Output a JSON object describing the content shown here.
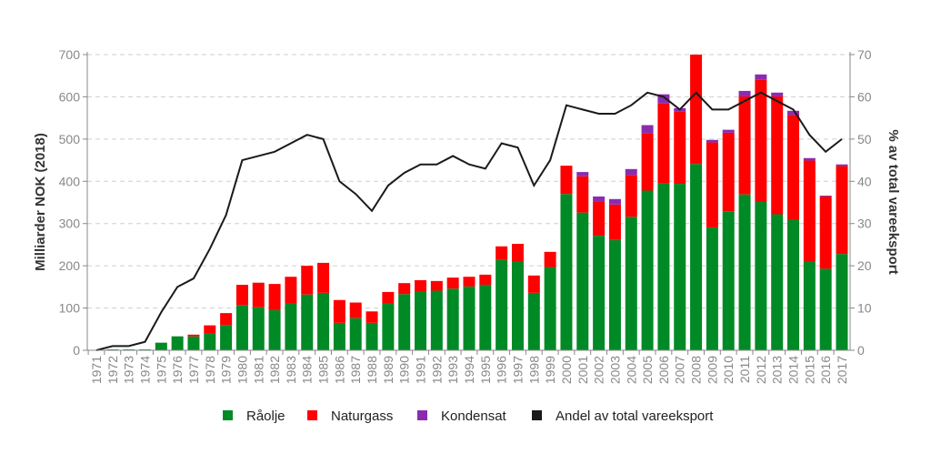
{
  "chart_data": {
    "type": "bar",
    "stacked": true,
    "categories": [
      "1971",
      "1972",
      "1973",
      "1974",
      "1975",
      "1976",
      "1977",
      "1978",
      "1979",
      "1980",
      "1981",
      "1982",
      "1983",
      "1984",
      "1985",
      "1986",
      "1987",
      "1988",
      "1989",
      "1990",
      "1991",
      "1992",
      "1993",
      "1994",
      "1995",
      "1996",
      "1997",
      "1998",
      "1999",
      "2000",
      "2001",
      "2002",
      "2003",
      "2004",
      "2005",
      "2006",
      "2007",
      "2008",
      "2009",
      "2010",
      "2011",
      "2012",
      "2013",
      "2014",
      "2015",
      "2016",
      "2017"
    ],
    "series": [
      {
        "name": "Råolje",
        "type": "bar",
        "color": "#008a25",
        "axis": "left",
        "values": [
          0,
          2,
          2,
          2,
          18,
          33,
          33,
          40,
          60,
          107,
          102,
          95,
          111,
          132,
          136,
          65,
          76,
          65,
          110,
          133,
          138,
          141,
          146,
          151,
          155,
          214,
          210,
          136,
          197,
          370,
          326,
          271,
          261,
          316,
          378,
          395,
          394,
          441,
          291,
          329,
          369,
          351,
          322,
          309,
          210,
          193,
          228
        ]
      },
      {
        "name": "Naturgass",
        "type": "bar",
        "color": "#ff0000",
        "axis": "left",
        "values": [
          0,
          0,
          0,
          0,
          0,
          0,
          4,
          19,
          28,
          48,
          58,
          62,
          63,
          68,
          71,
          54,
          37,
          27,
          28,
          26,
          28,
          23,
          26,
          23,
          24,
          32,
          42,
          41,
          36,
          67,
          86,
          82,
          84,
          99,
          136,
          189,
          172,
          259,
          201,
          186,
          232,
          289,
          279,
          248,
          239,
          171,
          208
        ]
      },
      {
        "name": "Kondensat",
        "type": "bar",
        "color": "#8b2cb0",
        "axis": "left",
        "values": [
          0,
          0,
          0,
          0,
          0,
          0,
          0,
          0,
          0,
          0,
          0,
          0,
          0,
          0,
          0,
          0,
          0,
          0,
          0,
          0,
          0,
          0,
          0,
          0,
          0,
          0,
          0,
          0,
          0,
          0,
          10,
          11,
          13,
          14,
          19,
          22,
          7,
          0,
          6,
          7,
          13,
          13,
          9,
          10,
          6,
          2,
          4
        ]
      },
      {
        "name": "Andel av total vareeksport",
        "type": "line",
        "color": "#1a1a1a",
        "axis": "right",
        "values": [
          0,
          1,
          1,
          2,
          9,
          15,
          17,
          24,
          32,
          45,
          46,
          47,
          49,
          51,
          50,
          40,
          37,
          33,
          39,
          42,
          44,
          44,
          46,
          44,
          43,
          49,
          48,
          39,
          45,
          58,
          57,
          56,
          56,
          58,
          61,
          60,
          57,
          61,
          57,
          57,
          59,
          61,
          59,
          57,
          51,
          47,
          50
        ]
      }
    ],
    "ylabel": "Milliarder NOK (2018)",
    "ylabel_right": "% av total vareeksport",
    "ylim": [
      0,
      700
    ],
    "ylim_right": [
      0,
      70
    ],
    "yticks": [
      "0",
      "100",
      "200",
      "300",
      "400",
      "500",
      "600",
      "700"
    ],
    "yticks_right": [
      "0",
      "10",
      "20",
      "30",
      "40",
      "50",
      "60",
      "70"
    ],
    "grid": "horizontal dashed",
    "legend_position": "bottom"
  }
}
